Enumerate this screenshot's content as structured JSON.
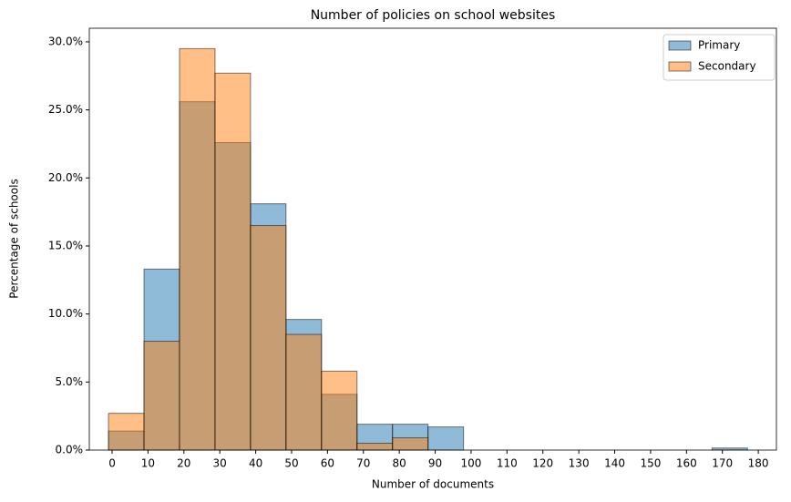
{
  "chart_data": {
    "type": "histogram",
    "title": "Number of policies on school websites",
    "x_label": "Number of documents",
    "y_label": "Percentage of schools",
    "bins": [
      -1,
      8.89,
      18.78,
      28.67,
      38.56,
      48.44,
      58.33,
      68.22,
      78.11,
      88,
      97.89,
      107.78,
      117.67,
      127.56,
      137.44,
      147.33,
      157.22,
      167.11,
      177
    ],
    "series": [
      {
        "name": "Primary",
        "color": "#1f77b4",
        "values": [
          1.4,
          13.3,
          25.6,
          22.6,
          18.1,
          9.6,
          4.1,
          1.9,
          1.9,
          1.7,
          0,
          0,
          0,
          0,
          0,
          0,
          0,
          0.15
        ]
      },
      {
        "name": "Secondary",
        "color": "#ff7f0e",
        "values": [
          2.7,
          8.0,
          29.5,
          27.7,
          16.5,
          8.5,
          5.8,
          0.5,
          0.9,
          0,
          0,
          0,
          0,
          0,
          0,
          0,
          0,
          0
        ]
      }
    ],
    "xlim": [
      -6.35,
      185.05
    ],
    "ylim": [
      0,
      31.0
    ],
    "xticks": [
      0,
      10,
      20,
      30,
      40,
      50,
      60,
      70,
      80,
      90,
      100,
      110,
      120,
      130,
      140,
      150,
      160,
      170,
      180
    ],
    "yticks": [
      {
        "value": 0,
        "label": "0.0%"
      },
      {
        "value": 5,
        "label": "5.0%"
      },
      {
        "value": 10,
        "label": "10.0%"
      },
      {
        "value": 15,
        "label": "15.0%"
      },
      {
        "value": 20,
        "label": "20.0%"
      },
      {
        "value": 25,
        "label": "25.0%"
      },
      {
        "value": 30,
        "label": "30.0%"
      }
    ],
    "legend": "upper right",
    "opacity": 0.5
  }
}
